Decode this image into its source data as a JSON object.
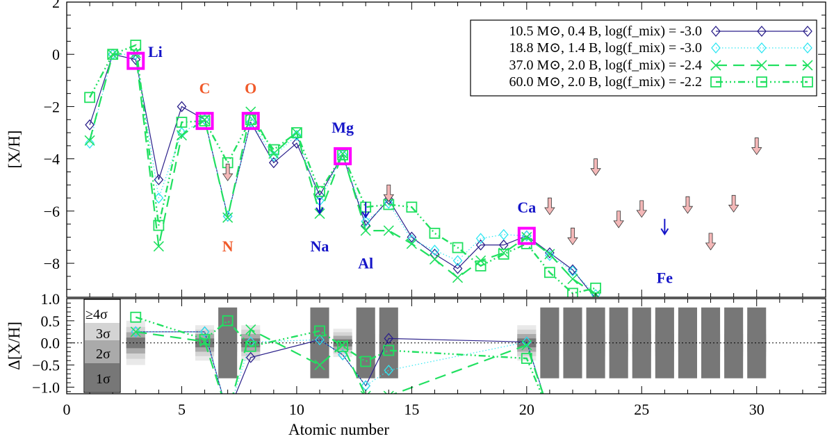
{
  "chart_data": [
    {
      "type": "line",
      "xlabel": "Atomic number",
      "ylabel": "[X/H]",
      "xlim": [
        0,
        33
      ],
      "ylim": [
        -9.3,
        2
      ],
      "xticks": [
        "0",
        "5",
        "10",
        "15",
        "20",
        "25",
        "30"
      ],
      "yticks": [
        "2",
        "0",
        "−2",
        "−4",
        "−6",
        "−8"
      ],
      "legend_position": "top-right",
      "legend": [
        "10.5 M⊙,  0.4 B, log(f_mix) = -3.0",
        "18.8 M⊙,  1.4 B, log(f_mix) = -3.0",
        "37.0 M⊙,  2.0 B, log(f_mix) = -2.4",
        "60.0 M⊙,  2.0 B, log(f_mix) = -2.2"
      ],
      "colors": {
        "s1": "#2a1f8a",
        "s2": "#2ee6f2",
        "s3": "#20e060",
        "s4": "#20e060",
        "observed": "#ff00ff",
        "measured_label": "#1515c8",
        "limit_label": "#f05a2a",
        "upper_limit_arrow": "#f4b8b8"
      },
      "series": [
        {
          "x": [
            1,
            2,
            3,
            4,
            5,
            6,
            7,
            8,
            9,
            10,
            11,
            12,
            13,
            14,
            15,
            16,
            17,
            18,
            19,
            20,
            21,
            22,
            23
          ],
          "y": [
            -2.7,
            0.0,
            -0.2,
            -4.8,
            -2.0,
            -2.5,
            -6.2,
            -2.6,
            -4.15,
            -3.4,
            -5.4,
            -3.85,
            -6.55,
            -5.55,
            -7.0,
            -7.65,
            -8.2,
            -7.3,
            -7.3,
            -6.95,
            -7.6,
            -8.25,
            -9.35
          ]
        },
        {
          "x": [
            1,
            2,
            3,
            4,
            5,
            6,
            7,
            8,
            9,
            10,
            11,
            12,
            13,
            14,
            15,
            16,
            17,
            18,
            19,
            20,
            21,
            22,
            23
          ],
          "y": [
            -3.4,
            0.0,
            0.0,
            -5.5,
            -3.0,
            -2.5,
            -6.2,
            -2.6,
            -3.9,
            -3.1,
            -5.6,
            -3.85,
            -6.4,
            -5.7,
            -7.1,
            -7.5,
            -7.9,
            -7.05,
            -6.9,
            -6.95,
            -7.7,
            -8.3,
            -9.2
          ]
        },
        {
          "x": [
            1,
            2,
            3,
            4,
            5,
            6,
            7,
            8,
            9,
            10,
            11,
            12,
            13,
            14,
            15,
            16,
            17,
            18,
            19,
            20,
            21,
            22,
            23
          ],
          "y": [
            -3.3,
            0.0,
            0.05,
            -7.35,
            -3.1,
            -2.5,
            -6.25,
            -2.2,
            -3.8,
            -3.0,
            -6.1,
            -3.8,
            -6.75,
            -6.75,
            -7.25,
            -7.85,
            -8.55,
            -7.9,
            -7.6,
            -7.0,
            -7.65,
            -8.6,
            -9.2
          ]
        },
        {
          "x": [
            1,
            2,
            3,
            4,
            5,
            6,
            7,
            8,
            9,
            10,
            11,
            12,
            13,
            14,
            15,
            16,
            17,
            18,
            19,
            20,
            21,
            22,
            23
          ],
          "y": [
            -1.65,
            0.0,
            0.35,
            -6.55,
            -2.6,
            -2.55,
            -4.15,
            -2.5,
            -3.65,
            -3.0,
            -5.25,
            -3.85,
            -5.85,
            -5.75,
            -5.85,
            -6.85,
            -7.4,
            -8.1,
            -7.65,
            -7.25,
            -8.35,
            -9.15,
            -8.95
          ]
        }
      ],
      "observed_points": {
        "x": [
          3,
          6,
          8,
          12,
          20
        ],
        "y": [
          -0.25,
          -2.55,
          -2.55,
          -3.9,
          -6.95
        ]
      },
      "measured_upper_limits": {
        "x": [
          11,
          13,
          26
        ],
        "y": [
          -5.5,
          -5.65,
          -6.3
        ]
      },
      "upper_limits": {
        "x": [
          7,
          14,
          21,
          22,
          23,
          24,
          25,
          27,
          28,
          29,
          30
        ],
        "y": [
          -4.2,
          -5.0,
          -5.5,
          -6.65,
          -4.0,
          -6.0,
          -5.6,
          -5.45,
          -6.85,
          -5.4,
          -3.2
        ]
      },
      "element_labels": [
        {
          "text": "Li",
          "x": 3.85,
          "y": -0.1,
          "color": "measured_label"
        },
        {
          "text": "C",
          "x": 6.0,
          "y": -1.5,
          "color": "limit_label"
        },
        {
          "text": "O",
          "x": 8.0,
          "y": -1.5,
          "color": "limit_label"
        },
        {
          "text": "N",
          "x": 7.0,
          "y": -7.55,
          "color": "limit_label"
        },
        {
          "text": "Mg",
          "x": 12.0,
          "y": -3.0,
          "color": "measured_label"
        },
        {
          "text": "Na",
          "x": 11.0,
          "y": -7.55,
          "color": "measured_label"
        },
        {
          "text": "Al",
          "x": 13.0,
          "y": -8.2,
          "color": "measured_label"
        },
        {
          "text": "Ca",
          "x": 20.0,
          "y": -6.05,
          "color": "measured_label"
        },
        {
          "text": "Fe",
          "x": 26.0,
          "y": -8.75,
          "color": "measured_label"
        }
      ]
    },
    {
      "type": "line",
      "xlabel": "Atomic number",
      "ylabel": "Δ[X/H]",
      "xlim": [
        0,
        33
      ],
      "ylim": [
        -1.15,
        1.0
      ],
      "xticks": [
        "0",
        "5",
        "10",
        "15",
        "20",
        "25",
        "30"
      ],
      "yticks": [
        "1.0",
        "0.5",
        "0.0",
        "−0.5",
        "−1.0"
      ],
      "sigma_legend": [
        "≥4σ",
        "3σ",
        "2σ",
        "1σ"
      ],
      "bars": [
        {
          "x": 3,
          "s1": 0.12,
          "s2": 0.24,
          "s3": 0.36,
          "s4": 0.5
        },
        {
          "x": 6,
          "s1": 0.1,
          "s2": 0.2,
          "s3": 0.3,
          "s4": 0.4
        },
        {
          "x": 7,
          "s1": 0.8,
          "s2": 0.2,
          "s3": 0.3,
          "s4": 0.4
        },
        {
          "x": 8,
          "s1": 0.1,
          "s2": 0.2,
          "s3": 0.3,
          "s4": 0.4
        },
        {
          "x": 11,
          "s1": 0.8,
          "s2": 0.2,
          "s3": 0.3,
          "s4": 0.4
        },
        {
          "x": 12,
          "s1": 0.08,
          "s2": 0.16,
          "s3": 0.24,
          "s4": 0.32
        },
        {
          "x": 13,
          "s1": 0.8,
          "s2": 0.2,
          "s3": 0.3,
          "s4": 0.4
        },
        {
          "x": 14,
          "s1": 0.8,
          "s2": 0.2,
          "s3": 0.3,
          "s4": 0.4
        },
        {
          "x": 20,
          "s1": 0.1,
          "s2": 0.2,
          "s3": 0.3,
          "s4": 0.4
        },
        {
          "x": 21,
          "s1": 0.8,
          "s2": 0.2,
          "s3": 0.3,
          "s4": 0.4
        },
        {
          "x": 22,
          "s1": 0.8,
          "s2": 0.2,
          "s3": 0.3,
          "s4": 0.4
        },
        {
          "x": 23,
          "s1": 0.8,
          "s2": 0.2,
          "s3": 0.3,
          "s4": 0.4
        },
        {
          "x": 24,
          "s1": 0.8,
          "s2": 0.2,
          "s3": 0.3,
          "s4": 0.4
        },
        {
          "x": 25,
          "s1": 0.8,
          "s2": 0.2,
          "s3": 0.3,
          "s4": 0.4
        },
        {
          "x": 26,
          "s1": 0.8,
          "s2": 0.2,
          "s3": 0.3,
          "s4": 0.4
        },
        {
          "x": 27,
          "s1": 0.8,
          "s2": 0.2,
          "s3": 0.3,
          "s4": 0.4
        },
        {
          "x": 28,
          "s1": 0.8,
          "s2": 0.2,
          "s3": 0.3,
          "s4": 0.4
        },
        {
          "x": 29,
          "s1": 0.8,
          "s2": 0.2,
          "s3": 0.3,
          "s4": 0.4
        },
        {
          "x": 30,
          "s1": 0.8,
          "s2": 0.2,
          "s3": 0.3,
          "s4": 0.4
        }
      ],
      "series": [
        {
          "x": [
            3,
            6,
            7,
            8,
            11,
            12,
            13,
            14,
            20,
            21
          ],
          "y": [
            0.25,
            0.25,
            -1.6,
            -0.33,
            0.07,
            -0.27,
            -0.97,
            0.1,
            0.02,
            -1.6
          ]
        },
        {
          "x": [
            3,
            6,
            7,
            8,
            11,
            12,
            13,
            14,
            20,
            21
          ],
          "y": [
            0.25,
            0.25,
            -1.6,
            0.02,
            0.07,
            -0.27,
            -0.97,
            -0.62,
            0.02,
            -1.6
          ]
        },
        {
          "x": [
            3,
            6,
            7,
            8,
            11,
            12,
            13,
            14,
            20,
            21
          ],
          "y": [
            0.25,
            0.03,
            -1.6,
            0.3,
            -0.5,
            -0.05,
            -1.2,
            -1.2,
            -0.05,
            -1.6
          ]
        },
        {
          "x": [
            3,
            6,
            7,
            8,
            11,
            12,
            13,
            14,
            20,
            21
          ],
          "y": [
            0.58,
            0.08,
            0.5,
            -0.08,
            0.27,
            -0.08,
            -0.42,
            -0.17,
            -0.35,
            -1.6
          ]
        }
      ]
    }
  ]
}
